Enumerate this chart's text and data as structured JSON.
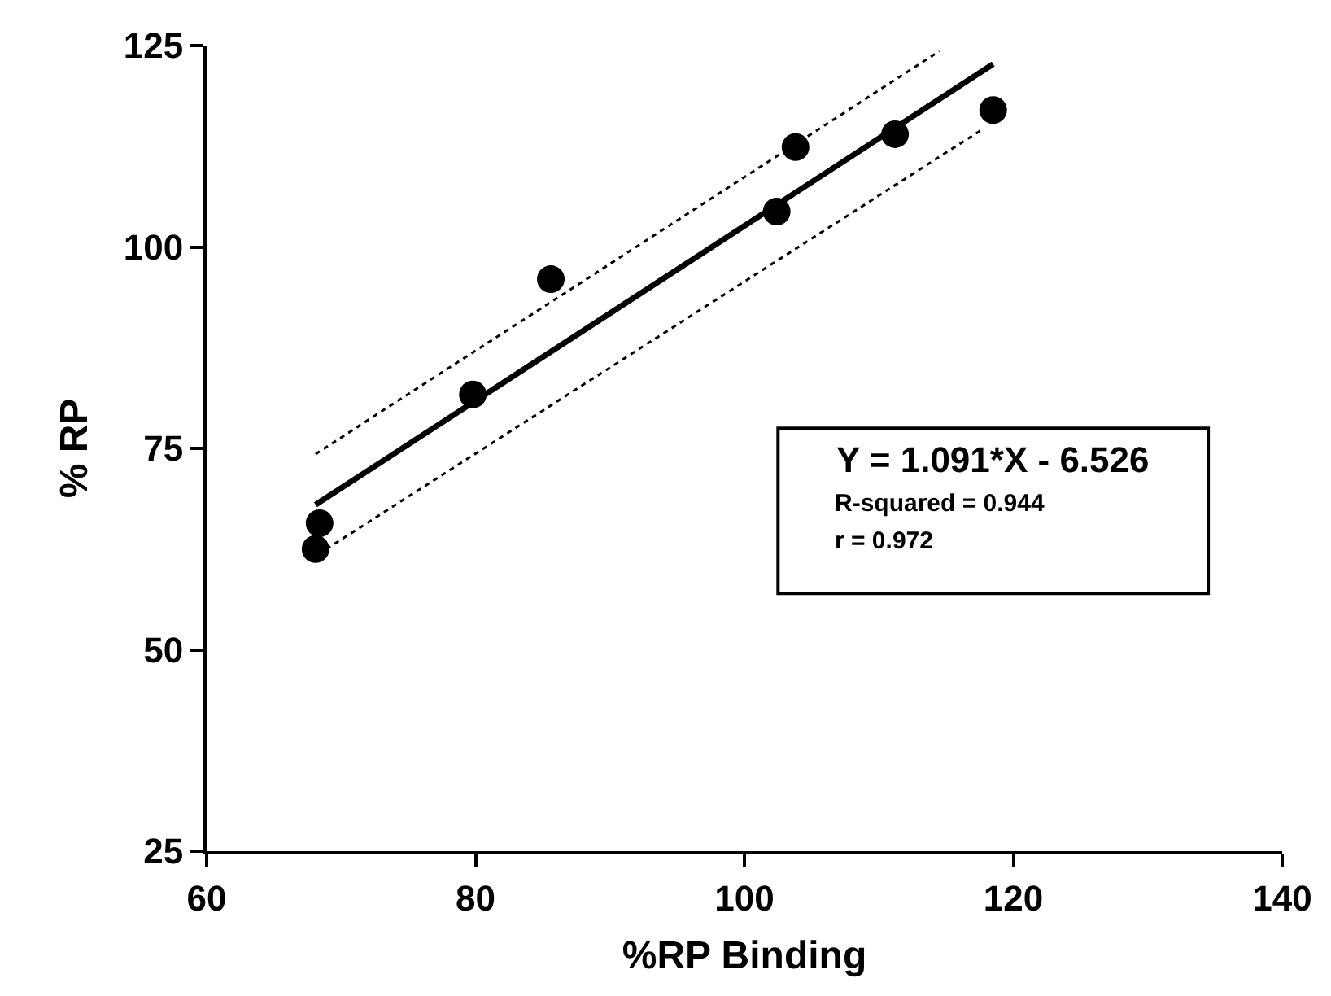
{
  "chart_data": {
    "type": "scatter",
    "xlabel": "%RP Binding",
    "ylabel": "% RP",
    "xlim": [
      60,
      140
    ],
    "xticks": [
      60,
      80,
      100,
      120,
      140
    ],
    "ylim": [
      25,
      125
    ],
    "yticks": [
      25,
      50,
      75,
      100,
      125
    ],
    "x": [
      68.4,
      68.1,
      79.8,
      85.6,
      102.4,
      103.8,
      111.2,
      118.5
    ],
    "series": [
      {
        "color": "#000000",
        "marker": "circle",
        "values": [
          65.7,
          62.5,
          81.7,
          96.0,
          104.4,
          112.4,
          114.0,
          117.0
        ]
      },
      {
        "type": "line",
        "color": "#000000",
        "marker": "none",
        "line_style": "solid",
        "x": [
          68.1,
          118.5
        ],
        "values": [
          68.0,
          122.7
        ]
      },
      {
        "type": "line",
        "color": "#000000",
        "marker": "none",
        "line_style": "dotted",
        "x": [
          68.1,
          114.5
        ],
        "values": [
          74.3,
          124.3
        ]
      },
      {
        "type": "line",
        "color": "#000000",
        "marker": "none",
        "line_style": "dotted",
        "x": [
          68.9,
          117.7
        ],
        "values": [
          62.5,
          114.6
        ]
      }
    ],
    "annotations": [
      "Y = 1.091*X - 6.526",
      "R-squared = 0.944",
      "r = 0.972"
    ]
  }
}
